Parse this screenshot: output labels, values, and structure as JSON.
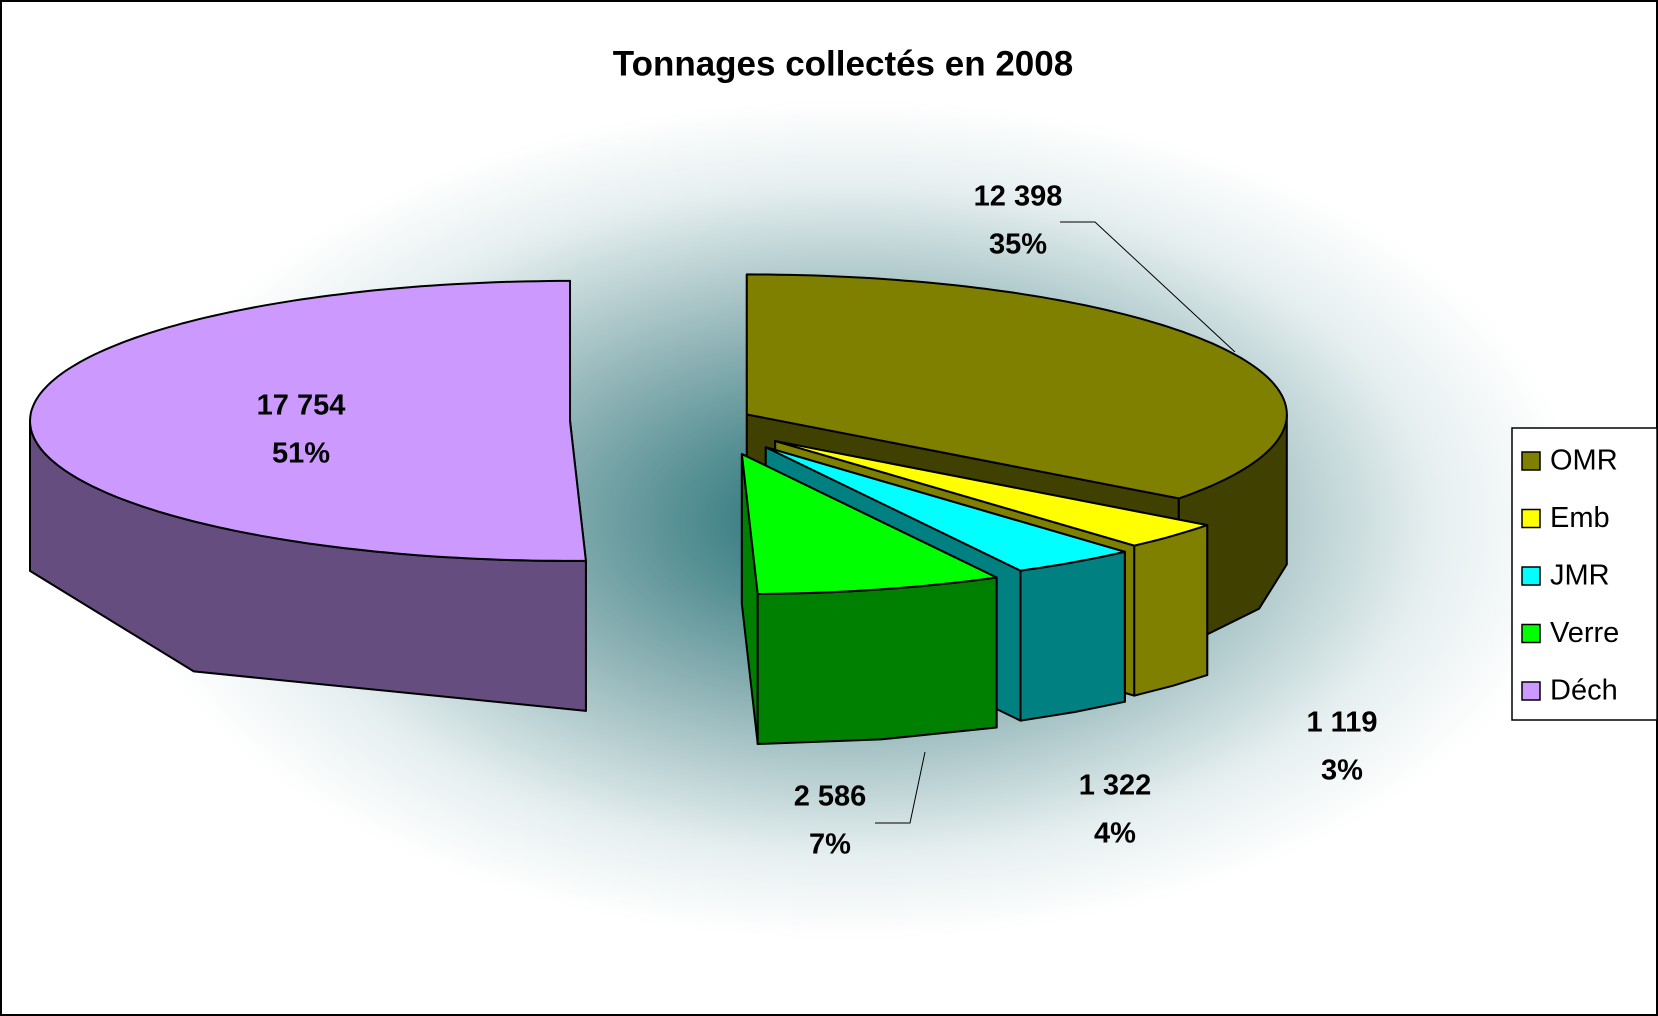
{
  "chart_data": {
    "type": "pie3d",
    "title": "Tonnages collectés en 2008",
    "categories": [
      "OMR",
      "Emb",
      "JMR",
      "Verre",
      "Déch"
    ],
    "values": [
      12398,
      1119,
      1322,
      2586,
      17754
    ],
    "value_labels": [
      "12 398",
      "1 119",
      "1 322",
      "2 586",
      "17 754"
    ],
    "percentages": [
      35,
      3,
      4,
      7,
      51
    ],
    "percentage_labels": [
      "35%",
      "3%",
      "4%",
      "7%",
      "51%"
    ],
    "colors": [
      "#808000",
      "#ffff00",
      "#00ffff",
      "#00ff00",
      "#cc99ff"
    ],
    "legend": "right"
  }
}
